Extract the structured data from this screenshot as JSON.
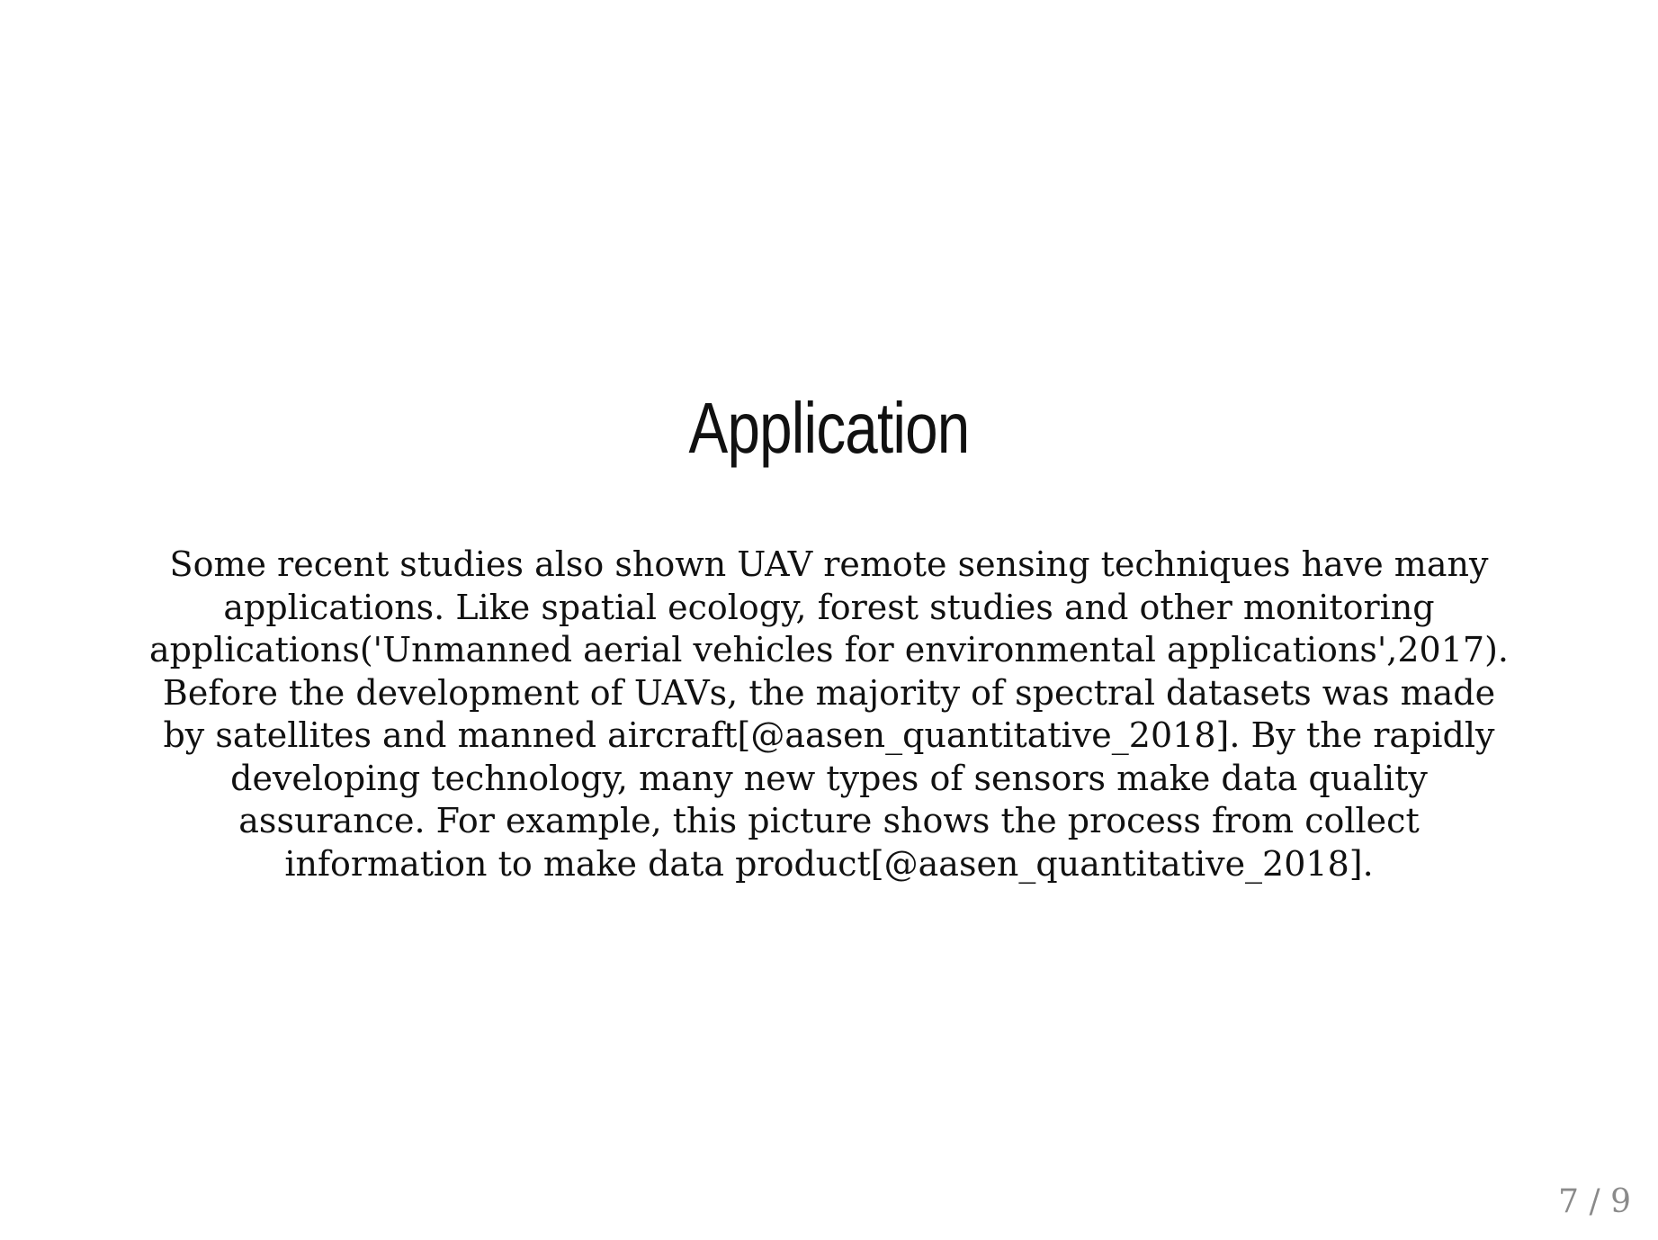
{
  "slide": {
    "title": "Application",
    "body": "Some recent studies also shown UAV remote sensing techniques have many applications. Like spatial ecology, forest studies and other monitoring applications('Unmanned aerial vehicles for environmental applications',2017). Before the development of UAVs, the majority of spectral datasets was made by satellites and manned aircraft[@aasen_quantitative_2018]. By the rapidly developing technology, many new types of sensors make data quality assurance. For example, this picture shows the process from collect information to make data product[@aasen_quantitative_2018].",
    "page_number": "7 / 9"
  }
}
